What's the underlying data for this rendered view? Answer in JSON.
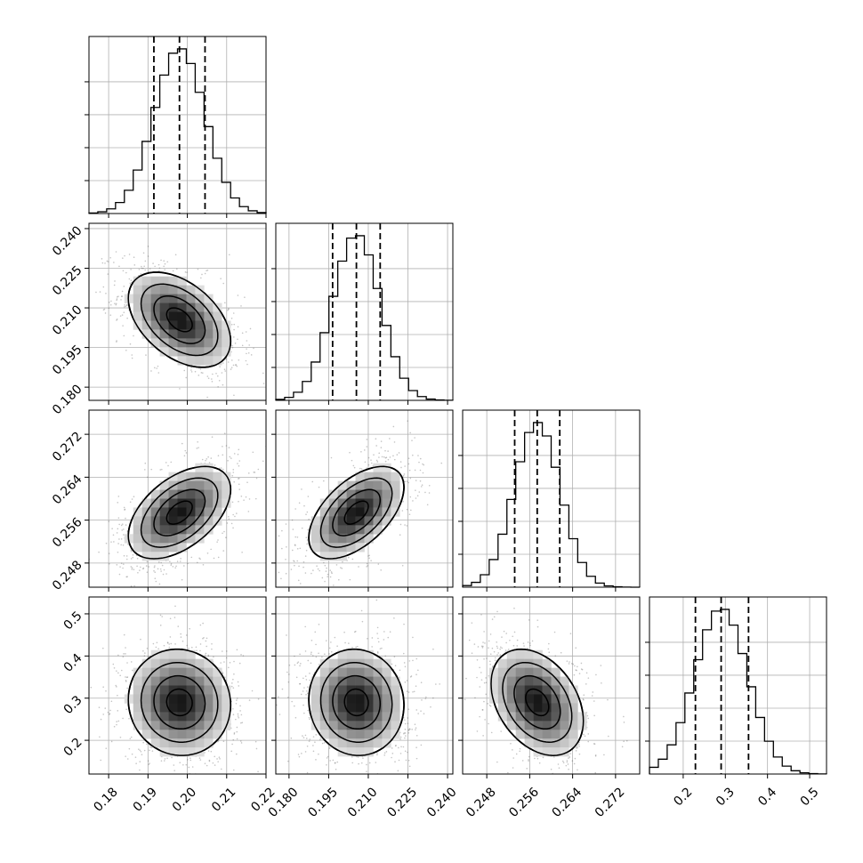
{
  "chart_data": {
    "type": "corner",
    "grid": true,
    "n_params": 4,
    "params": [
      {
        "range": [
          0.175,
          0.22
        ],
        "ticks": [
          0.18,
          0.19,
          0.2,
          0.21,
          0.22
        ],
        "tick_labels": [
          "0.18",
          "0.19",
          "0.20",
          "0.21",
          "0.22"
        ],
        "mean": 0.198,
        "sd": 0.0065,
        "quantiles": [
          0.1915,
          0.198,
          0.2045
        ]
      },
      {
        "range": [
          0.175,
          0.242
        ],
        "ticks": [
          0.18,
          0.195,
          0.21,
          0.225,
          0.24
        ],
        "tick_labels": [
          "0.180",
          "0.195",
          "0.210",
          "0.225",
          "0.240"
        ],
        "mean": 0.2055,
        "sd": 0.009,
        "quantiles": [
          0.1965,
          0.2055,
          0.2145
        ]
      },
      {
        "range": [
          0.2435,
          0.2765
        ],
        "ticks": [
          0.248,
          0.256,
          0.264,
          0.272
        ],
        "tick_labels": [
          "0.248",
          "0.256",
          "0.264",
          "0.272"
        ],
        "mean": 0.2574,
        "sd": 0.0043,
        "quantiles": [
          0.2532,
          0.2574,
          0.2616
        ]
      },
      {
        "range": [
          0.12,
          0.54
        ],
        "ticks": [
          0.2,
          0.3,
          0.4,
          0.5
        ],
        "tick_labels": [
          "0.2",
          "0.3",
          "0.4",
          "0.5"
        ],
        "mean": 0.29,
        "sd": 0.063,
        "quantiles": [
          0.229,
          0.29,
          0.355
        ]
      }
    ],
    "correlations": {
      "1-0": -0.45,
      "2-0": 0.5,
      "2-1": 0.55,
      "3-0": -0.05,
      "3-1": -0.05,
      "3-2": -0.35
    },
    "diagonal": "histogram",
    "off_diagonal": "2d-density-contours-with-scatter",
    "quantile_lines": "dashed"
  }
}
